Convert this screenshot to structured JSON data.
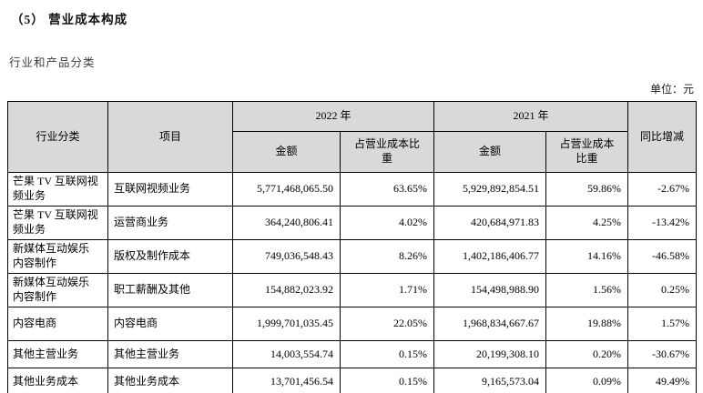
{
  "page": {
    "title": "（5）  营业成本构成",
    "subtitle": "行业和产品分类",
    "unit_label": "单位：元"
  },
  "colors": {
    "header_bg": "#d9d9d9",
    "border": "#000000",
    "text": "#000000",
    "page_bg": "#ffffff"
  },
  "table": {
    "headers": {
      "industry": "行业分类",
      "item": "项目",
      "year_2022": "2022 年",
      "year_2021": "2021 年",
      "amount": "金额",
      "cost_ratio": "占营业成本比重",
      "yoy": "同比增减"
    },
    "rows": [
      {
        "industry": "芒果 TV 互联网视频业务",
        "item": "互联网视频业务",
        "amount_2022": "5,771,468,065.50",
        "ratio_2022": "63.65%",
        "amount_2021": "5,929,892,854.51",
        "ratio_2021": "59.86%",
        "yoy": "-2.67%"
      },
      {
        "industry": "芒果 TV 互联网视频业务",
        "item": "运营商业务",
        "amount_2022": "364,240,806.41",
        "ratio_2022": "4.02%",
        "amount_2021": "420,684,971.83",
        "ratio_2021": "4.25%",
        "yoy": "-13.42%"
      },
      {
        "industry": "新媒体互动娱乐内容制作",
        "item": "版权及制作成本",
        "amount_2022": "749,036,548.43",
        "ratio_2022": "8.26%",
        "amount_2021": "1,402,186,406.77",
        "ratio_2021": "14.16%",
        "yoy": "-46.58%"
      },
      {
        "industry": "新媒体互动娱乐内容制作",
        "item": "职工薪酬及其他",
        "amount_2022": "154,882,023.92",
        "ratio_2022": "1.71%",
        "amount_2021": "154,498,988.90",
        "ratio_2021": "1.56%",
        "yoy": "0.25%"
      },
      {
        "industry": "内容电商",
        "item": "内容电商",
        "amount_2022": "1,999,701,035.45",
        "ratio_2022": "22.05%",
        "amount_2021": "1,968,834,667.67",
        "ratio_2021": "19.88%",
        "yoy": "1.57%"
      },
      {
        "industry": "其他主营业务",
        "item": "其他主营业务",
        "amount_2022": "14,003,554.74",
        "ratio_2022": "0.15%",
        "amount_2021": "20,199,308.10",
        "ratio_2021": "0.20%",
        "yoy": "-30.67%"
      },
      {
        "industry": "其他业务成本",
        "item": "其他业务成本",
        "amount_2022": "13,701,456.54",
        "ratio_2022": "0.15%",
        "amount_2021": "9,165,573.04",
        "ratio_2021": "0.09%",
        "yoy": "49.49%"
      }
    ]
  }
}
